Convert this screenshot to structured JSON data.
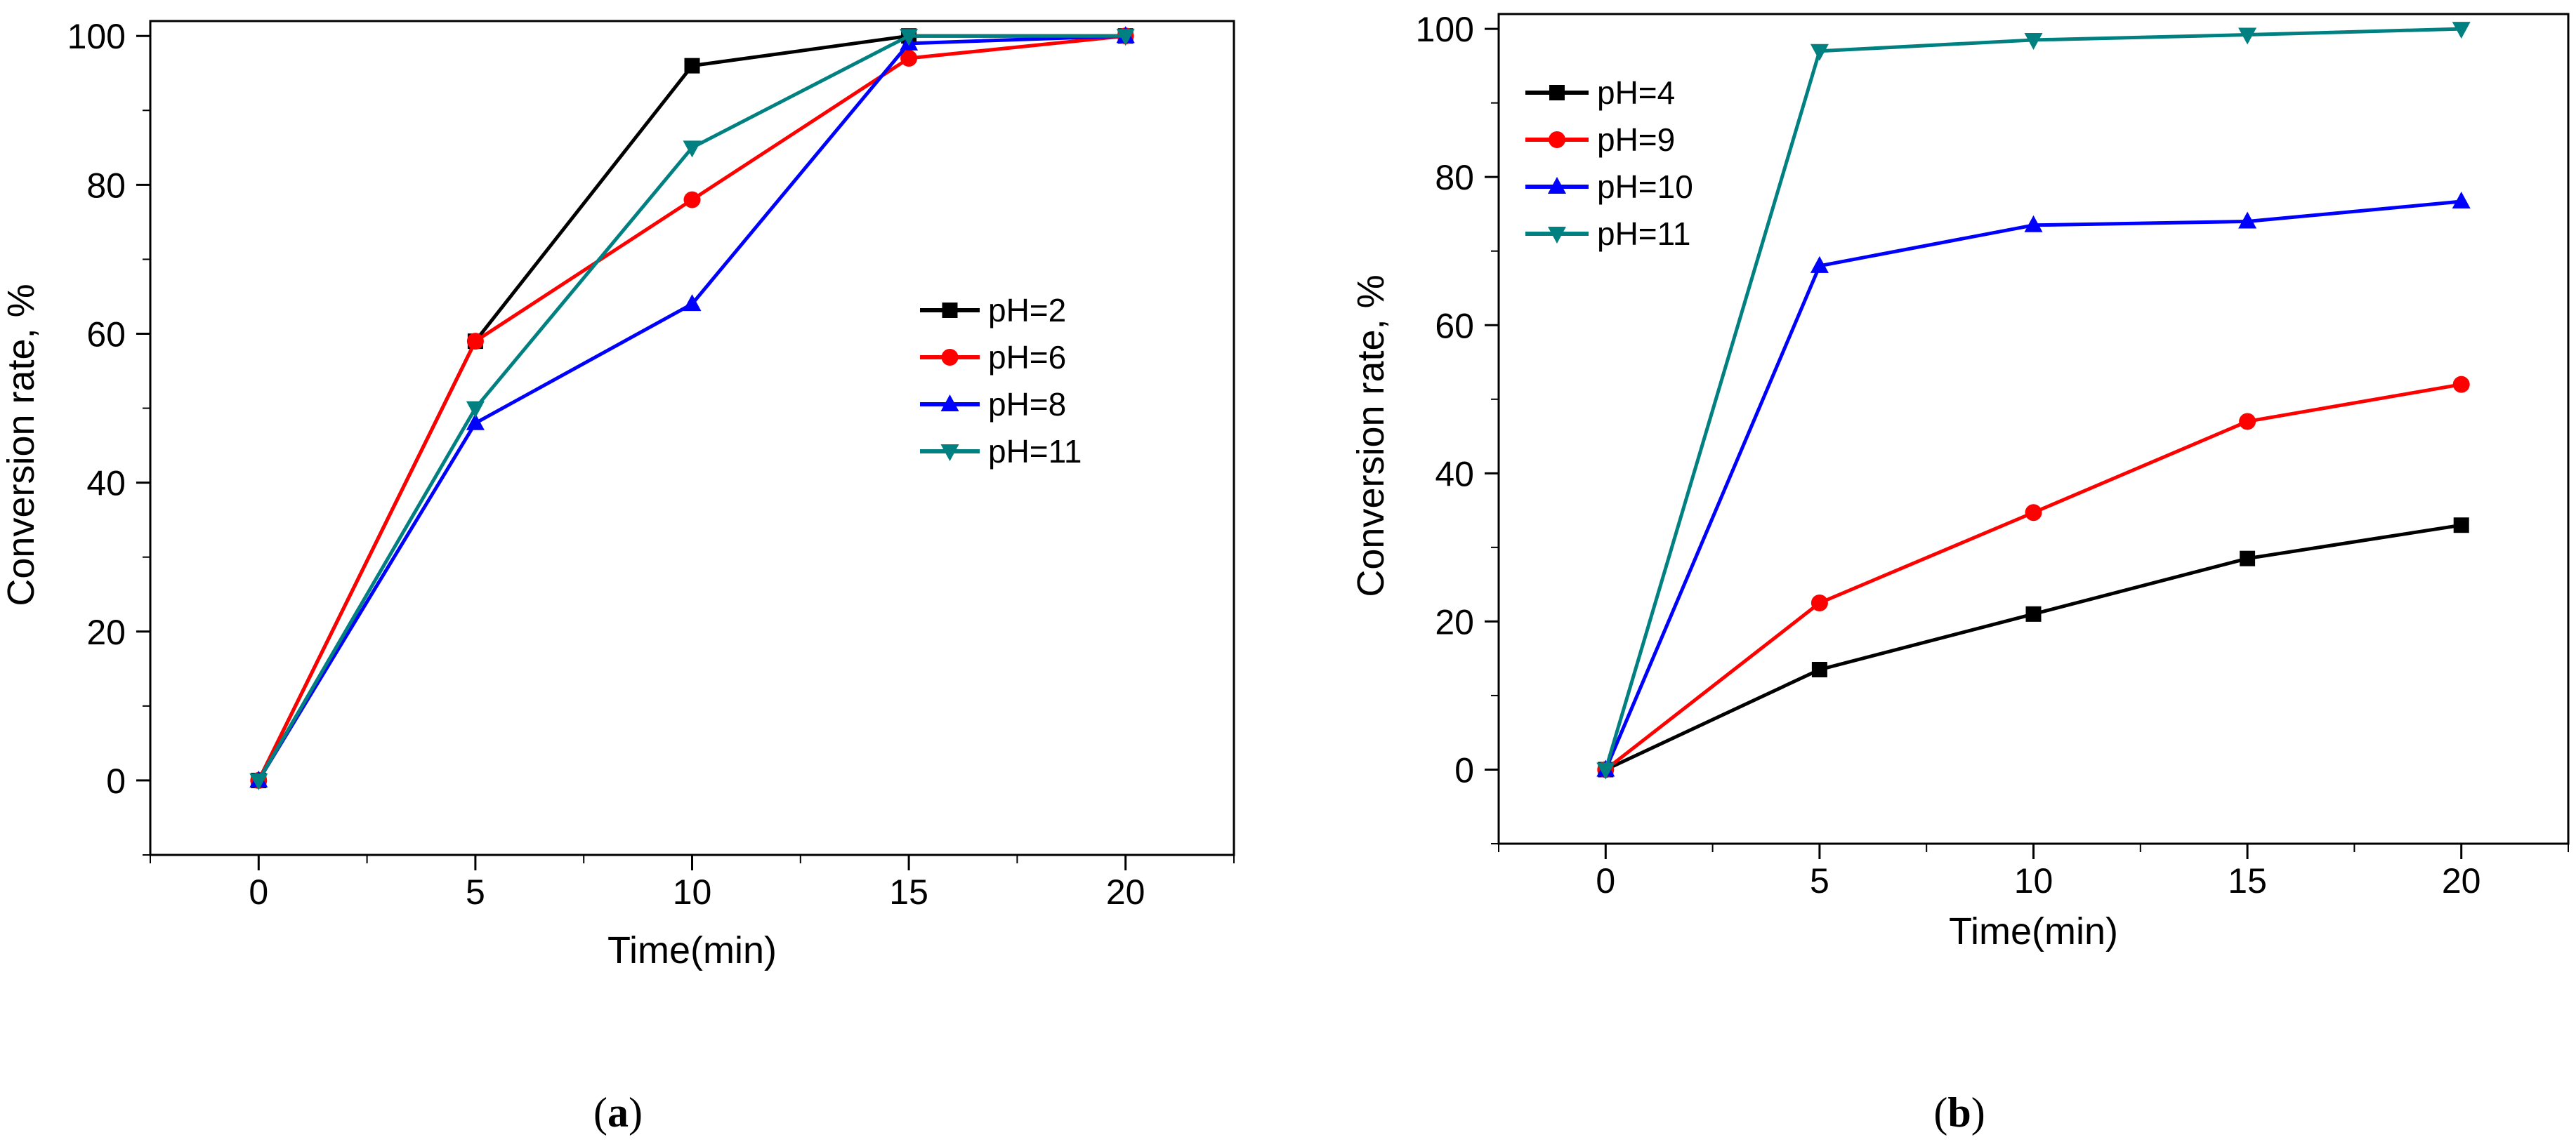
{
  "chart_data": [
    {
      "type": "line",
      "panel": "a",
      "caption_letter": "a",
      "xlabel": "Time(min)",
      "ylabel": "Conversion rate, %",
      "xlim": [
        -2.5,
        22.5
      ],
      "ylim": [
        -10,
        102
      ],
      "xticks": [
        0,
        5,
        10,
        15,
        20
      ],
      "yticks": [
        0,
        20,
        40,
        60,
        80,
        100
      ],
      "grid": false,
      "legend_position": "center-right",
      "x": [
        0,
        5,
        10,
        15,
        20
      ],
      "series": [
        {
          "name": "pH=2",
          "color": "#000000",
          "marker": "square",
          "values": [
            0,
            59,
            96,
            100,
            100
          ]
        },
        {
          "name": "pH=6",
          "color": "#ff0000",
          "marker": "circle",
          "values": [
            0,
            59,
            78,
            97,
            100
          ]
        },
        {
          "name": "pH=8",
          "color": "#0000ff",
          "marker": "triangle-up",
          "values": [
            0,
            48,
            64,
            99,
            100
          ]
        },
        {
          "name": "pH=11",
          "color": "#008080",
          "marker": "triangle-down",
          "values": [
            0,
            50,
            85,
            100,
            100
          ]
        }
      ]
    },
    {
      "type": "line",
      "panel": "b",
      "caption_letter": "b",
      "xlabel": "Time(min)",
      "ylabel": "Conversion rate, %",
      "xlim": [
        -2.5,
        22.5
      ],
      "ylim": [
        -10,
        102
      ],
      "xticks": [
        0,
        5,
        10,
        15,
        20
      ],
      "yticks": [
        0,
        20,
        40,
        60,
        80,
        100
      ],
      "grid": false,
      "legend_position": "top-left",
      "x": [
        0,
        5,
        10,
        15,
        20
      ],
      "series": [
        {
          "name": "pH=4",
          "color": "#000000",
          "marker": "square",
          "values": [
            0,
            13.5,
            21,
            28.5,
            33
          ]
        },
        {
          "name": "pH=9",
          "color": "#ff0000",
          "marker": "circle",
          "values": [
            0,
            22.5,
            34.7,
            47,
            52
          ]
        },
        {
          "name": "pH=10",
          "color": "#0000ff",
          "marker": "triangle-up",
          "values": [
            0,
            68,
            73.5,
            74,
            76.7
          ]
        },
        {
          "name": "pH=11",
          "color": "#008080",
          "marker": "triangle-down",
          "values": [
            0,
            97,
            98.5,
            99.2,
            100
          ]
        }
      ]
    }
  ]
}
